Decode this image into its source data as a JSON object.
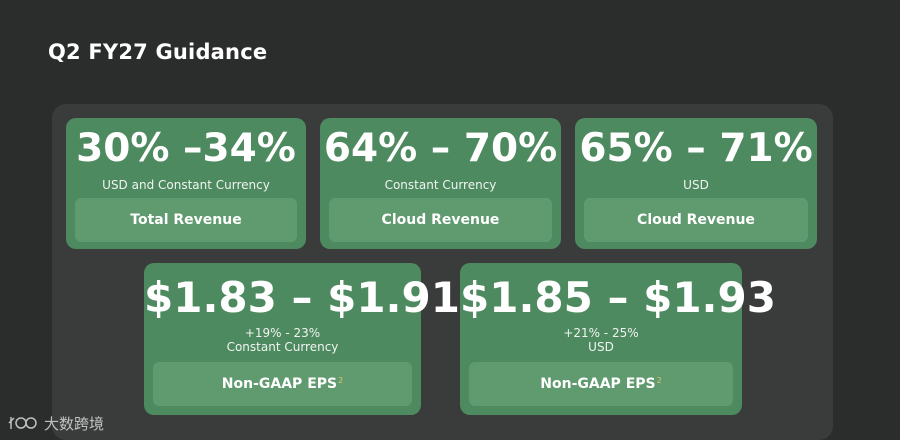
{
  "slide": {
    "title": "Q2 FY27 Guidance"
  },
  "cards": [
    {
      "range": "30% –34%",
      "sub": "USD and Constant Currency",
      "label": "Total Revenue"
    },
    {
      "range": "64% – 70%",
      "sub": "Constant Currency",
      "label": "Cloud Revenue"
    },
    {
      "range": "65% – 71%",
      "sub": "USD",
      "label": "Cloud Revenue"
    }
  ],
  "eps_cards": [
    {
      "range": "$1.83 – $1.91",
      "growth": "+19% - 23%",
      "sub": "Constant Currency",
      "label": "Non-GAAP EPS",
      "footnote": "2"
    },
    {
      "range": "$1.85 – $1.93",
      "growth": "+21% - 25%",
      "sub": "USD",
      "label": "Non-GAAP EPS",
      "footnote": "2"
    }
  ],
  "watermark": {
    "text": "大数跨境"
  },
  "colors": {
    "background": "#2b2d2d",
    "panel": "#3a3c3c",
    "card": "#4e8a5f",
    "label_box": "#609a6f",
    "footnote": "#d9c76a"
  }
}
